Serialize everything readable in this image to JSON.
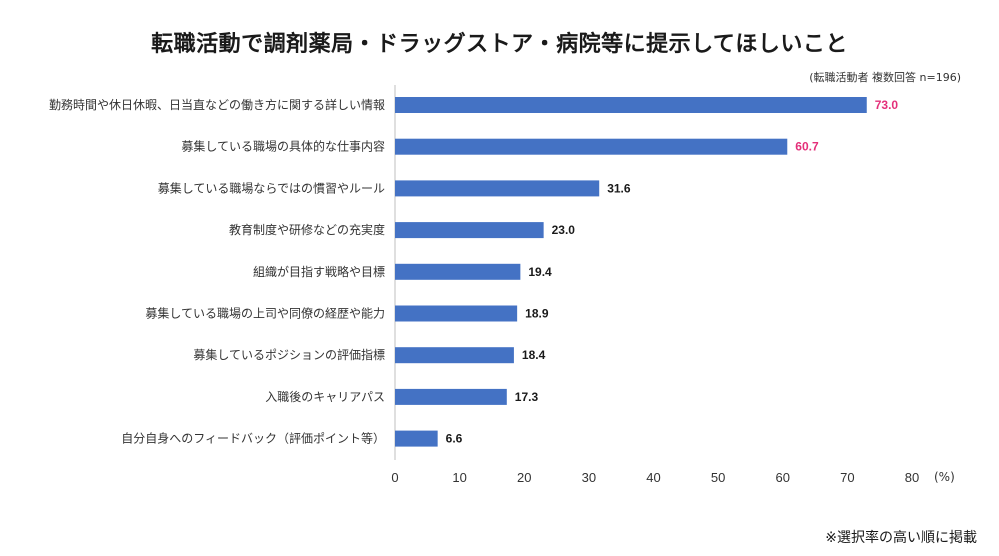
{
  "title": "転職活動で調剤薬局・ドラッグストア・病院等に提示してほしいこと",
  "subtitle": "(転職活動者 複数回答 n=196)",
  "footnote": "※選択率の高い順に掲載",
  "colors": {
    "bar": "#4472c4",
    "highlight_label": "#e4307a",
    "label": "#1a1a1a",
    "axis": "#bfbfbf"
  },
  "chart_data": {
    "type": "bar",
    "orientation": "horizontal",
    "categories": [
      "勤務時間や休日休暇、日当直などの働き方に関する詳しい情報",
      "募集している職場の具体的な仕事内容",
      "募集している職場ならではの慣習やルール",
      "教育制度や研修などの充実度",
      "組織が目指す戦略や目標",
      "募集している職場の上司や同僚の経歴や能力",
      "募集しているポジションの評価指標",
      "入職後のキャリアパス",
      "自分自身へのフィードバック（評価ポイント等）"
    ],
    "values": [
      73.0,
      60.7,
      31.6,
      23.0,
      19.4,
      18.9,
      18.4,
      17.3,
      6.6
    ],
    "value_labels": [
      "73.0",
      "60.7",
      "31.6",
      "23.0",
      "19.4",
      "18.9",
      "18.4",
      "17.3",
      "6.6"
    ],
    "highlighted": [
      true,
      true,
      false,
      false,
      false,
      false,
      false,
      false,
      false
    ],
    "xlim": [
      0,
      80
    ],
    "xticks": [
      "0",
      "10",
      "20",
      "30",
      "40",
      "50",
      "60",
      "70",
      "80"
    ],
    "xunit": "(%)",
    "grid": false,
    "legend": "none"
  }
}
